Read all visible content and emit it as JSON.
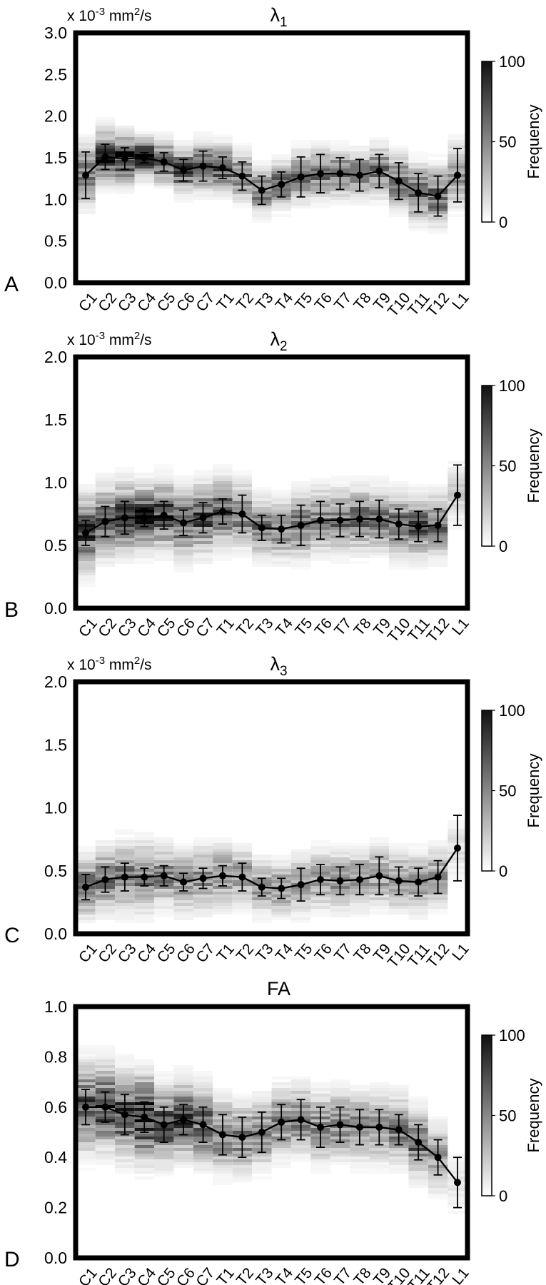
{
  "colorbar": {
    "ticks": [
      100,
      50,
      0
    ],
    "label": "Frequency"
  },
  "chart_data": [
    {
      "type": "line",
      "panel_letter": "A",
      "title_main": "λ",
      "title_sub": "1",
      "unit_prefix": "x 10",
      "unit_exp": "-3",
      "unit_mid": " mm",
      "unit_exp2": "2",
      "unit_suffix": "/s",
      "ylim": [
        0,
        3.0
      ],
      "yticks": [
        "0.0",
        "0.5",
        "1.0",
        "1.5",
        "2.0",
        "2.5",
        "3.0"
      ],
      "categories": [
        "C1",
        "C2",
        "C3",
        "C4",
        "C5",
        "C6",
        "C7",
        "T1",
        "T2",
        "T3",
        "T4",
        "T5",
        "T6",
        "T7",
        "T8",
        "T9",
        "T10",
        "T11",
        "T12",
        "L1"
      ],
      "mean": [
        1.29,
        1.51,
        1.49,
        1.5,
        1.45,
        1.35,
        1.4,
        1.38,
        1.28,
        1.11,
        1.18,
        1.27,
        1.31,
        1.31,
        1.29,
        1.34,
        1.22,
        1.08,
        1.04,
        1.29
      ],
      "error": [
        0.28,
        0.15,
        0.13,
        0.06,
        0.11,
        0.13,
        0.18,
        0.13,
        0.17,
        0.17,
        0.15,
        0.24,
        0.23,
        0.19,
        0.19,
        0.2,
        0.22,
        0.23,
        0.24,
        0.32
      ],
      "density_spread": [
        0.45,
        0.38,
        0.35,
        0.28,
        0.3,
        0.32,
        0.35,
        0.33,
        0.33,
        0.32,
        0.32,
        0.36,
        0.36,
        0.33,
        0.33,
        0.36,
        0.38,
        0.4,
        0.42,
        0.45
      ],
      "density_peak": [
        0.55,
        0.8,
        0.82,
        0.88,
        0.78,
        0.72,
        0.68,
        0.68,
        0.6,
        0.55,
        0.58,
        0.55,
        0.55,
        0.58,
        0.58,
        0.55,
        0.55,
        0.62,
        0.58,
        0.4
      ],
      "colorbar": true
    },
    {
      "type": "line",
      "panel_letter": "B",
      "title_main": "λ",
      "title_sub": "2",
      "unit_prefix": "x 10",
      "unit_exp": "-3",
      "unit_mid": " mm",
      "unit_exp2": "2",
      "unit_suffix": "/s",
      "ylim": [
        0,
        2.0
      ],
      "yticks": [
        "0.0",
        "0.5",
        "1.0",
        "1.5",
        "2.0"
      ],
      "categories": [
        "C1",
        "C2",
        "C3",
        "C4",
        "C5",
        "C6",
        "C7",
        "T1",
        "T2",
        "T3",
        "T4",
        "T5",
        "T6",
        "T7",
        "T8",
        "T9",
        "T10",
        "T11",
        "T12",
        "L1"
      ],
      "mean": [
        0.6,
        0.69,
        0.72,
        0.72,
        0.74,
        0.68,
        0.72,
        0.77,
        0.75,
        0.64,
        0.63,
        0.66,
        0.7,
        0.7,
        0.71,
        0.71,
        0.67,
        0.65,
        0.66,
        0.9
      ],
      "error": [
        0.1,
        0.12,
        0.13,
        0.07,
        0.11,
        0.1,
        0.12,
        0.1,
        0.15,
        0.1,
        0.11,
        0.16,
        0.15,
        0.13,
        0.14,
        0.15,
        0.12,
        0.12,
        0.13,
        0.24
      ],
      "density_spread": [
        0.35,
        0.33,
        0.33,
        0.3,
        0.32,
        0.32,
        0.33,
        0.32,
        0.3,
        0.28,
        0.28,
        0.3,
        0.3,
        0.3,
        0.3,
        0.3,
        0.3,
        0.3,
        0.3,
        0.3
      ],
      "density_peak": [
        0.7,
        0.7,
        0.72,
        0.85,
        0.72,
        0.66,
        0.66,
        0.62,
        0.55,
        0.52,
        0.5,
        0.52,
        0.54,
        0.55,
        0.56,
        0.52,
        0.56,
        0.6,
        0.52,
        0.18
      ],
      "colorbar": true
    },
    {
      "type": "line",
      "panel_letter": "C",
      "title_main": "λ",
      "title_sub": "3",
      "unit_prefix": "x 10",
      "unit_exp": "-3",
      "unit_mid": " mm",
      "unit_exp2": "2",
      "unit_suffix": "/s",
      "ylim": [
        0,
        2.0
      ],
      "yticks": [
        "0.0",
        "0.5",
        "1.0",
        "1.5",
        "2.0"
      ],
      "categories": [
        "C1",
        "C2",
        "C3",
        "C4",
        "C5",
        "C6",
        "C7",
        "T1",
        "T2",
        "T3",
        "T4",
        "T5",
        "T6",
        "T7",
        "T8",
        "T9",
        "T10",
        "T11",
        "T12",
        "L1"
      ],
      "mean": [
        0.37,
        0.43,
        0.45,
        0.45,
        0.46,
        0.41,
        0.44,
        0.46,
        0.45,
        0.37,
        0.36,
        0.39,
        0.43,
        0.42,
        0.43,
        0.46,
        0.42,
        0.41,
        0.45,
        0.68
      ],
      "error": [
        0.1,
        0.1,
        0.11,
        0.07,
        0.08,
        0.07,
        0.08,
        0.08,
        0.11,
        0.07,
        0.08,
        0.13,
        0.12,
        0.11,
        0.12,
        0.15,
        0.11,
        0.11,
        0.13,
        0.26
      ],
      "density_spread": [
        0.28,
        0.3,
        0.32,
        0.32,
        0.28,
        0.28,
        0.3,
        0.3,
        0.28,
        0.26,
        0.26,
        0.28,
        0.28,
        0.28,
        0.28,
        0.28,
        0.28,
        0.28,
        0.28,
        0.3
      ],
      "density_peak": [
        0.55,
        0.5,
        0.5,
        0.55,
        0.48,
        0.48,
        0.45,
        0.42,
        0.4,
        0.4,
        0.4,
        0.38,
        0.4,
        0.42,
        0.42,
        0.4,
        0.4,
        0.42,
        0.38,
        0.12
      ],
      "colorbar": true
    },
    {
      "type": "line",
      "panel_letter": "D",
      "title_main": "FA",
      "title_sub": "",
      "unit_prefix": "",
      "unit_exp": "",
      "unit_mid": "",
      "unit_exp2": "",
      "unit_suffix": "",
      "ylim": [
        0,
        1.0
      ],
      "yticks": [
        "0.0",
        "0.2",
        "0.4",
        "0.6",
        "0.8",
        "1.0"
      ],
      "categories": [
        "C1",
        "C2",
        "C3",
        "C4",
        "C5",
        "C6",
        "C7",
        "T1",
        "T2",
        "T3",
        "T4",
        "T5",
        "T6",
        "T7",
        "T8",
        "T9",
        "T10",
        "T11",
        "T12",
        "L1"
      ],
      "mean": [
        0.6,
        0.6,
        0.57,
        0.56,
        0.53,
        0.55,
        0.53,
        0.49,
        0.48,
        0.5,
        0.54,
        0.55,
        0.52,
        0.53,
        0.52,
        0.52,
        0.51,
        0.46,
        0.4,
        0.3
      ],
      "error": [
        0.07,
        0.06,
        0.08,
        0.06,
        0.07,
        0.06,
        0.07,
        0.08,
        0.08,
        0.08,
        0.07,
        0.08,
        0.08,
        0.07,
        0.07,
        0.07,
        0.06,
        0.07,
        0.07,
        0.1
      ],
      "density_spread": [
        0.2,
        0.2,
        0.2,
        0.2,
        0.18,
        0.18,
        0.18,
        0.17,
        0.16,
        0.16,
        0.16,
        0.16,
        0.16,
        0.16,
        0.16,
        0.16,
        0.16,
        0.16,
        0.16,
        0.16
      ],
      "density_peak": [
        0.72,
        0.72,
        0.72,
        0.92,
        0.7,
        0.68,
        0.62,
        0.55,
        0.52,
        0.5,
        0.5,
        0.5,
        0.48,
        0.48,
        0.48,
        0.48,
        0.5,
        0.6,
        0.4,
        0.1
      ],
      "colorbar": true
    }
  ]
}
